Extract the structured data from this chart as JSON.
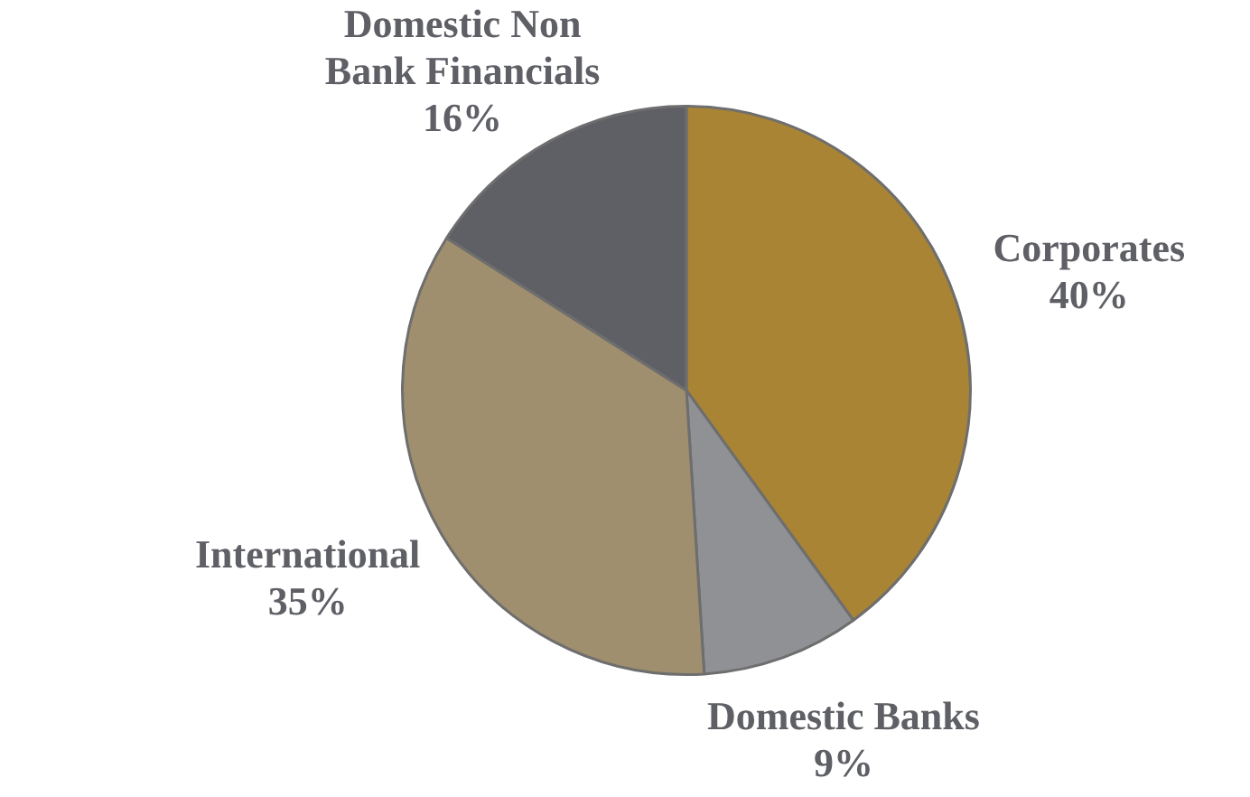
{
  "chart_data": {
    "type": "pie",
    "categories": [
      "Corporates",
      "Domestic Banks",
      "International",
      "Domestic Non Bank Financials"
    ],
    "values": [
      40,
      9,
      35,
      16
    ],
    "value_labels": [
      "40%",
      "9%",
      "35%",
      "16%"
    ],
    "colors": [
      "#a88434",
      "#909194",
      "#9f8f6f",
      "#5f6066"
    ],
    "legend": false
  }
}
